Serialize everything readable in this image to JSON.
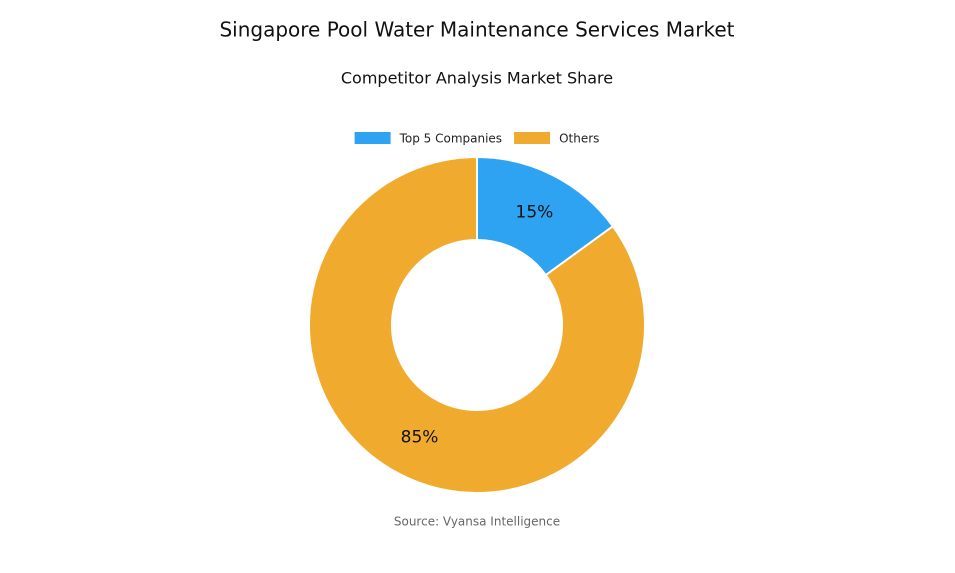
{
  "chart_data": {
    "type": "donut",
    "title": "Singapore Pool Water Maintenance Services Market",
    "subtitle": "Competitor Analysis Market Share",
    "categories": [
      "Top 5 Companies",
      "Others"
    ],
    "values": [
      15,
      85
    ],
    "value_labels": [
      "15%",
      "85%"
    ],
    "colors": [
      "#2ea3f2",
      "#f0ab2e"
    ],
    "legend": "top",
    "source": "Source: Vyansa Intelligence"
  }
}
